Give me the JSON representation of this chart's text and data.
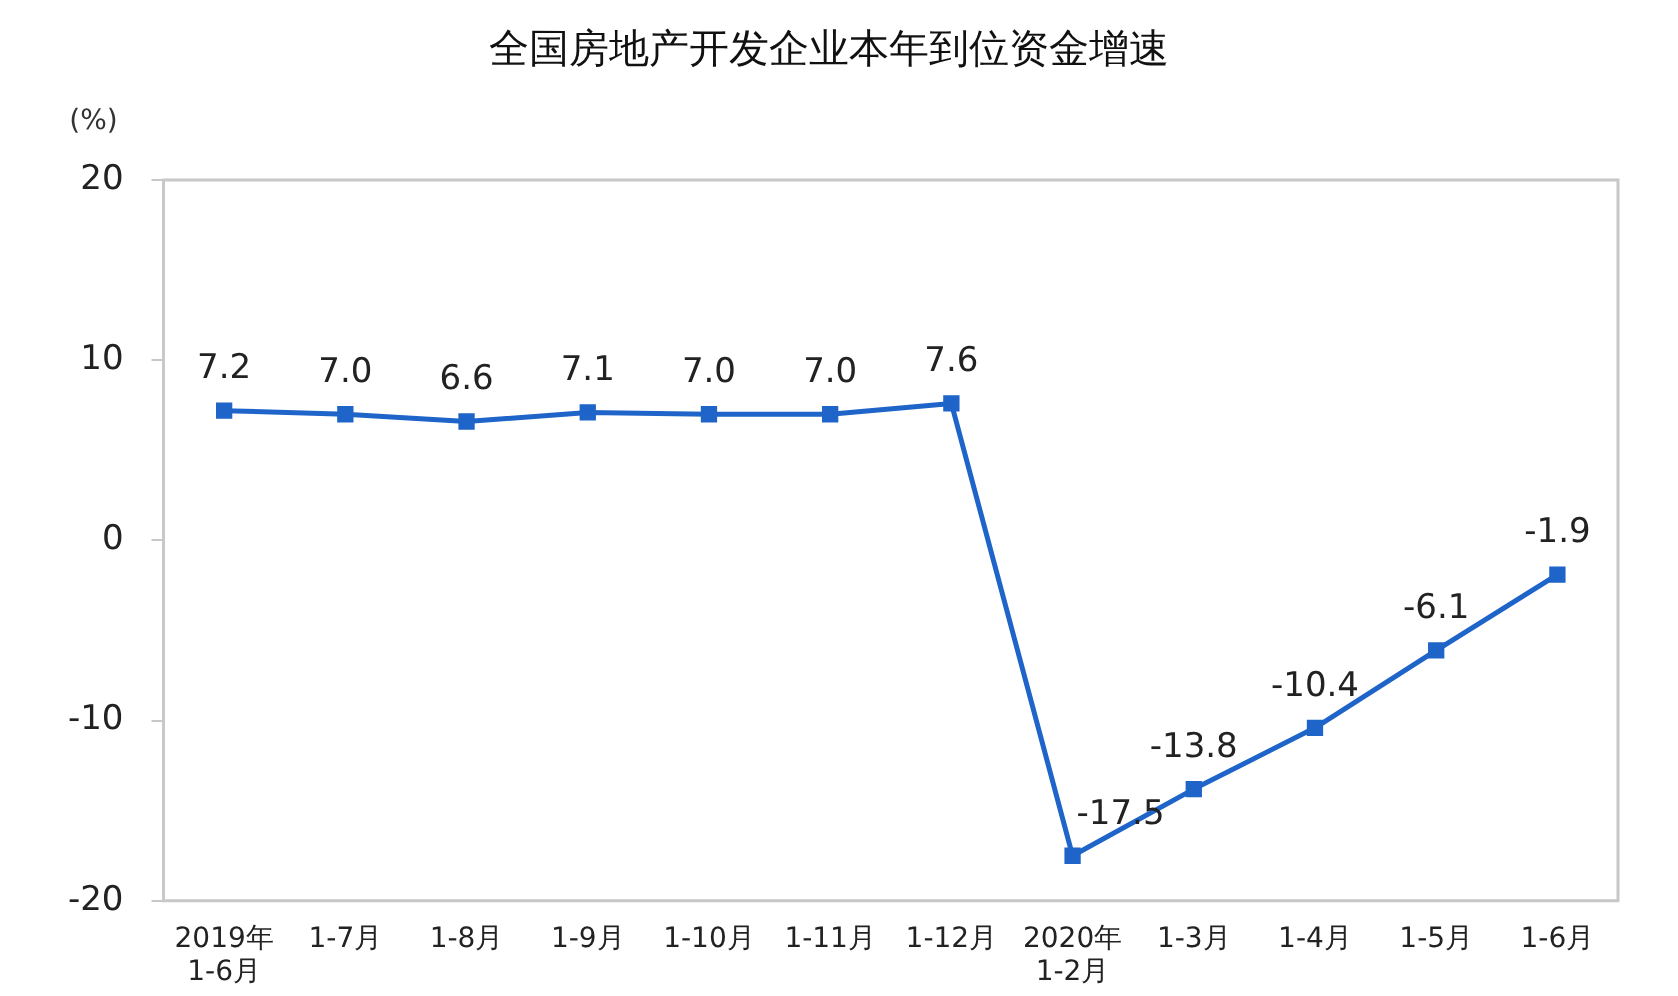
{
  "chart_data": {
    "type": "line",
    "title": "全国房地产开发企业本年到位资金增速",
    "ylabel": "(%)",
    "categories": [
      "2019年\n1-6月",
      "1-7月",
      "1-8月",
      "1-9月",
      "1-10月",
      "1-11月",
      "1-12月",
      "2020年\n1-2月",
      "1-3月",
      "1-4月",
      "1-5月",
      "1-6月"
    ],
    "series": [
      {
        "color": "#1f64c8",
        "values": [
          7.2,
          7.0,
          6.6,
          7.1,
          7.0,
          7.0,
          7.6,
          -17.5,
          -13.8,
          -10.4,
          -6.1,
          -1.9
        ],
        "value_labels": [
          "7.2",
          "7.0",
          "6.6",
          "7.1",
          "7.0",
          "7.0",
          "7.6",
          "-17.5",
          "-13.8",
          "-10.4",
          "-6.1",
          "-1.9"
        ]
      }
    ],
    "ylim": [
      -20,
      20
    ],
    "yticks": [
      -20,
      -10,
      0,
      10,
      20
    ],
    "grid": false,
    "legend": false,
    "marker": "square",
    "line_style": "solid"
  }
}
